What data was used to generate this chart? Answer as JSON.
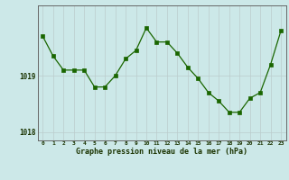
{
  "x": [
    0,
    1,
    2,
    3,
    4,
    5,
    6,
    7,
    8,
    9,
    10,
    11,
    12,
    13,
    14,
    15,
    16,
    17,
    18,
    19,
    20,
    21,
    22,
    23
  ],
  "y": [
    1019.7,
    1019.35,
    1019.1,
    1019.1,
    1019.1,
    1018.8,
    1018.8,
    1019.0,
    1019.3,
    1019.45,
    1019.85,
    1019.6,
    1019.6,
    1019.4,
    1019.15,
    1018.95,
    1018.7,
    1018.55,
    1018.35,
    1018.35,
    1018.6,
    1018.7,
    1019.2,
    1019.8
  ],
  "line_color": "#1a6600",
  "marker_color": "#1a6600",
  "bg_color": "#cce8e8",
  "grid_color": "#bbcccc",
  "axis_line_color": "#666666",
  "xlabel": "Graphe pression niveau de la mer (hPa)",
  "xlim": [
    -0.5,
    23.5
  ],
  "ylim": [
    1017.85,
    1020.25
  ]
}
